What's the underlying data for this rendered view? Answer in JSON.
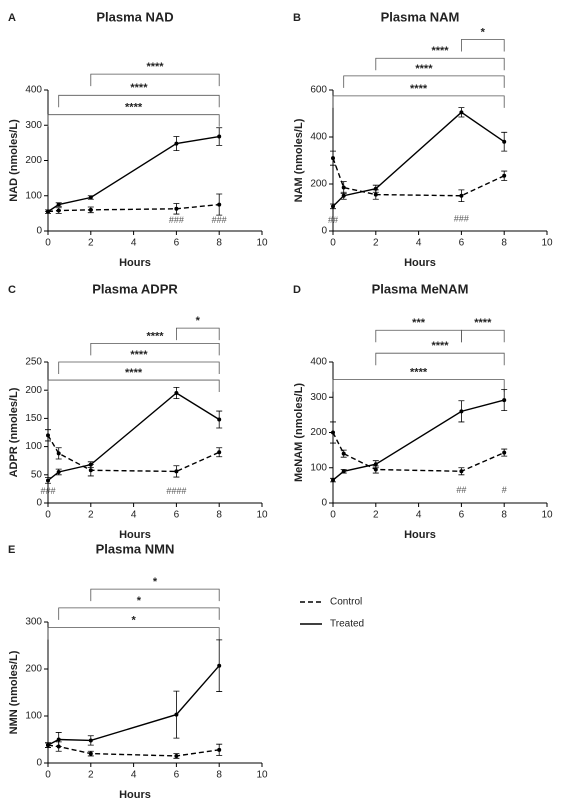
{
  "chart_data": [
    {
      "type": "line",
      "panel": "A",
      "title": "Plasma NAD",
      "x_label": "Hours",
      "y_label": "NAD (nmoles/L)",
      "x": [
        0,
        0.5,
        2,
        6,
        8
      ],
      "xlim": [
        0,
        10
      ],
      "xticks": [
        0,
        2,
        4,
        6,
        8,
        10
      ],
      "ylim": [
        0,
        400
      ],
      "yticks": [
        0,
        100,
        200,
        300,
        400
      ],
      "series": [
        {
          "style": "dashed",
          "color": "#000000",
          "values": [
            55,
            58,
            60,
            63,
            75
          ],
          "errors": [
            5,
            8,
            8,
            15,
            30
          ]
        },
        {
          "style": "solid",
          "color": "#000000",
          "values": [
            55,
            75,
            95,
            248,
            268
          ],
          "errors": [
            0,
            5,
            5,
            20,
            25
          ]
        }
      ],
      "brackets": [
        {
          "x1": 2,
          "x2": 8,
          "y": 445,
          "label": "****"
        },
        {
          "x1": 0.5,
          "x2": 8,
          "y": 385,
          "label": "****"
        },
        {
          "x1": 0,
          "x2": 8,
          "y": 330,
          "label": "****"
        }
      ],
      "marks": [
        {
          "x": 6,
          "y": 30,
          "label": "###"
        },
        {
          "x": 8,
          "y": 30,
          "label": "###"
        }
      ]
    },
    {
      "type": "line",
      "panel": "B",
      "title": "Plasma NAM",
      "x_label": "Hours",
      "y_label": "NAM (nmoles/L)",
      "x": [
        0,
        0.5,
        2,
        6,
        8
      ],
      "xlim": [
        0,
        10
      ],
      "xticks": [
        0,
        2,
        4,
        6,
        8,
        10
      ],
      "ylim": [
        0,
        600
      ],
      "yticks": [
        0,
        200,
        400,
        600
      ],
      "series": [
        {
          "style": "dashed",
          "color": "#000000",
          "values": [
            310,
            185,
            155,
            150,
            235
          ],
          "errors": [
            30,
            25,
            20,
            25,
            20
          ]
        },
        {
          "style": "solid",
          "color": "#000000",
          "values": [
            105,
            150,
            180,
            505,
            380
          ],
          "errors": [
            10,
            15,
            15,
            20,
            40
          ]
        }
      ],
      "brackets": [
        {
          "x1": 6,
          "x2": 8,
          "y": 815,
          "label": "*"
        },
        {
          "x1": 2,
          "x2": 8,
          "y": 735,
          "label": "****"
        },
        {
          "x1": 0.5,
          "x2": 8,
          "y": 660,
          "label": "****"
        },
        {
          "x1": 0,
          "x2": 8,
          "y": 575,
          "label": "****"
        }
      ],
      "marks": [
        {
          "x": 0,
          "y": 45,
          "label": "##"
        },
        {
          "x": 6,
          "y": 50,
          "label": "###"
        }
      ]
    },
    {
      "type": "line",
      "panel": "C",
      "title": "Plasma ADPR",
      "x_label": "Hours",
      "y_label": "ADPR (nmoles/L)",
      "x": [
        0,
        0.5,
        2,
        6,
        8
      ],
      "xlim": [
        0,
        10
      ],
      "xticks": [
        0,
        2,
        4,
        6,
        8,
        10
      ],
      "ylim": [
        0,
        250
      ],
      "yticks": [
        0,
        50,
        100,
        150,
        200,
        250
      ],
      "series": [
        {
          "style": "dashed",
          "color": "#000000",
          "values": [
            120,
            88,
            58,
            56,
            90
          ],
          "errors": [
            10,
            10,
            10,
            10,
            8
          ]
        },
        {
          "style": "solid",
          "color": "#000000",
          "values": [
            40,
            55,
            68,
            195,
            148
          ],
          "errors": [
            5,
            5,
            5,
            10,
            15
          ]
        }
      ],
      "brackets": [
        {
          "x1": 6,
          "x2": 8,
          "y": 310,
          "label": "*"
        },
        {
          "x1": 2,
          "x2": 8,
          "y": 283,
          "label": "****"
        },
        {
          "x1": 0.5,
          "x2": 8,
          "y": 250,
          "label": "****"
        },
        {
          "x1": 0,
          "x2": 8,
          "y": 218,
          "label": "****"
        }
      ],
      "marks": [
        {
          "x": 0,
          "y": 20,
          "label": "###"
        },
        {
          "x": 6,
          "y": 20,
          "label": "####"
        }
      ]
    },
    {
      "type": "line",
      "panel": "D",
      "title": "Plasma MeNAM",
      "x_label": "Hours",
      "y_label": "MeNAM (nmoles/L)",
      "x": [
        0,
        0.5,
        2,
        6,
        8
      ],
      "xlim": [
        0,
        10
      ],
      "xticks": [
        0,
        2,
        4,
        6,
        8,
        10
      ],
      "ylim": [
        0,
        400
      ],
      "yticks": [
        0,
        100,
        200,
        300,
        400
      ],
      "series": [
        {
          "style": "dashed",
          "color": "#000000",
          "values": [
            200,
            140,
            95,
            90,
            143
          ],
          "errors": [
            30,
            10,
            10,
            10,
            10
          ]
        },
        {
          "style": "solid",
          "color": "#000000",
          "values": [
            65,
            90,
            110,
            260,
            292
          ],
          "errors": [
            5,
            5,
            10,
            30,
            30
          ]
        }
      ],
      "brackets": [
        {
          "x1": 2,
          "x2": 6,
          "y": 490,
          "label": "***"
        },
        {
          "x1": 6,
          "x2": 8,
          "y": 490,
          "label": "****"
        },
        {
          "x1": 2,
          "x2": 8,
          "y": 425,
          "label": "****"
        },
        {
          "x1": 0,
          "x2": 8,
          "y": 350,
          "label": "****"
        }
      ],
      "marks": [
        {
          "x": 6,
          "y": 35,
          "label": "##"
        },
        {
          "x": 8,
          "y": 35,
          "label": "#"
        }
      ]
    },
    {
      "type": "line",
      "panel": "E",
      "title": "Plasma NMN",
      "x_label": "Hours",
      "y_label": "NMN (nmoles/L)",
      "x": [
        0,
        0.5,
        2,
        6,
        8
      ],
      "xlim": [
        0,
        10
      ],
      "xticks": [
        0,
        2,
        4,
        6,
        8,
        10
      ],
      "ylim": [
        0,
        300
      ],
      "yticks": [
        0,
        100,
        200,
        300
      ],
      "legend": "right",
      "series": [
        {
          "name": "Control",
          "style": "dashed",
          "color": "#000000",
          "values": [
            38,
            35,
            20,
            15,
            28
          ],
          "errors": [
            5,
            10,
            5,
            5,
            12
          ]
        },
        {
          "name": "Treated",
          "style": "solid",
          "color": "#000000",
          "values": [
            38,
            50,
            48,
            103,
            207
          ],
          "errors": [
            5,
            15,
            10,
            50,
            55
          ]
        }
      ],
      "brackets": [
        {
          "x1": 2,
          "x2": 8,
          "y": 370,
          "label": "*"
        },
        {
          "x1": 0.5,
          "x2": 8,
          "y": 330,
          "label": "*"
        },
        {
          "x1": 0,
          "x2": 8,
          "y": 288,
          "label": "*"
        }
      ],
      "marks": []
    }
  ]
}
